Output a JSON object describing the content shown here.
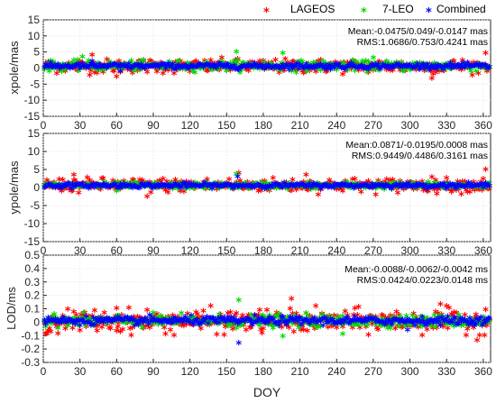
{
  "chart_data": {
    "type": "scatter",
    "legend": {
      "placement": "top-right",
      "entries": [
        {
          "name": "LAGEOS",
          "color": "#ff0000"
        },
        {
          "name": "7-LEO",
          "color": "#00d800"
        },
        {
          "name": "Combined",
          "color": "#0000ff"
        }
      ]
    },
    "xlabel": "DOY",
    "xlim": [
      0,
      366
    ],
    "xticks": [
      0,
      30,
      60,
      90,
      120,
      150,
      180,
      210,
      240,
      270,
      300,
      330,
      360
    ],
    "grid": true,
    "panels": [
      {
        "ylabel": "xpole/mas",
        "ylim": [
          -15,
          15
        ],
        "yticks": [
          15,
          10,
          5,
          0,
          -5,
          -10,
          -15
        ],
        "mean_text": "Mean:-0.0475/0.049/-0.0147 mas",
        "rms_text": "RMS:1.0686/0.753/0.4241 mas",
        "series": [
          {
            "name": "LAGEOS",
            "rms": 1.0686,
            "mean": -0.0475,
            "outliers": [
              [
                40,
                3.5
              ],
              [
                60,
                -3.2
              ],
              [
                157,
                1.8
              ],
              [
                318,
                -3.8
              ],
              [
                362,
                4.0
              ]
            ]
          },
          {
            "name": "7-LEO",
            "rms": 0.753,
            "mean": 0.049,
            "outliers": [
              [
                32,
                3.0
              ],
              [
                158,
                4.5
              ],
              [
                196,
                4.0
              ],
              [
                270,
                2.6
              ]
            ]
          },
          {
            "name": "Combined",
            "rms": 0.4241,
            "mean": -0.0147,
            "outliers": [
              [
                40,
                1.5
              ],
              [
                63,
                -1.5
              ]
            ]
          }
        ]
      },
      {
        "ylabel": "ypole/mas",
        "ylim": [
          -15,
          15
        ],
        "yticks": [
          15,
          10,
          5,
          0,
          -5,
          -10,
          -15
        ],
        "mean_text": "Mean:0.0871/-0.0195/0.0008 mas",
        "rms_text": "RMS:0.9449/0.4486/0.3161 mas",
        "series": [
          {
            "name": "LAGEOS",
            "rms": 0.9449,
            "mean": 0.0871,
            "outliers": [
              [
                25,
                3.0
              ],
              [
                85,
                -3.0
              ],
              [
                160,
                3.5
              ],
              [
                215,
                3.0
              ],
              [
                362,
                4.5
              ]
            ]
          },
          {
            "name": "7-LEO",
            "rms": 0.4486,
            "mean": -0.0195,
            "outliers": [
              [
                158,
                3.2
              ],
              [
                60,
                -1.5
              ]
            ]
          },
          {
            "name": "Combined",
            "rms": 0.3161,
            "mean": 0.0008,
            "outliers": [
              [
                159,
                2.5
              ]
            ]
          }
        ]
      },
      {
        "ylabel": "LOD/ms",
        "ylim": [
          -0.3,
          0.5
        ],
        "yticks": [
          0.5,
          0.4,
          0.3,
          0.2,
          0.1,
          0,
          -0.1,
          -0.2,
          -0.3
        ],
        "mean_text": "Mean:-0.0088/-0.0062/-0.0042 ms",
        "rms_text": "RMS:0.0424/0.0223/0.0148 ms",
        "series": [
          {
            "name": "LAGEOS",
            "rms": 0.0424,
            "mean": -0.0088,
            "outliers": [
              [
                60,
                0.09
              ],
              [
                203,
                0.16
              ],
              [
                325,
                0.12
              ],
              [
                355,
                -0.15
              ],
              [
                362,
                0.08
              ]
            ]
          },
          {
            "name": "7-LEO",
            "rms": 0.0223,
            "mean": -0.0062,
            "outliers": [
              [
                160,
                0.15
              ],
              [
                196,
                -0.12
              ],
              [
                245,
                -0.1
              ]
            ]
          },
          {
            "name": "Combined",
            "rms": 0.0148,
            "mean": -0.0042,
            "outliers": [
              [
                160,
                -0.17
              ],
              [
                298,
                -0.07
              ]
            ]
          }
        ]
      }
    ]
  }
}
